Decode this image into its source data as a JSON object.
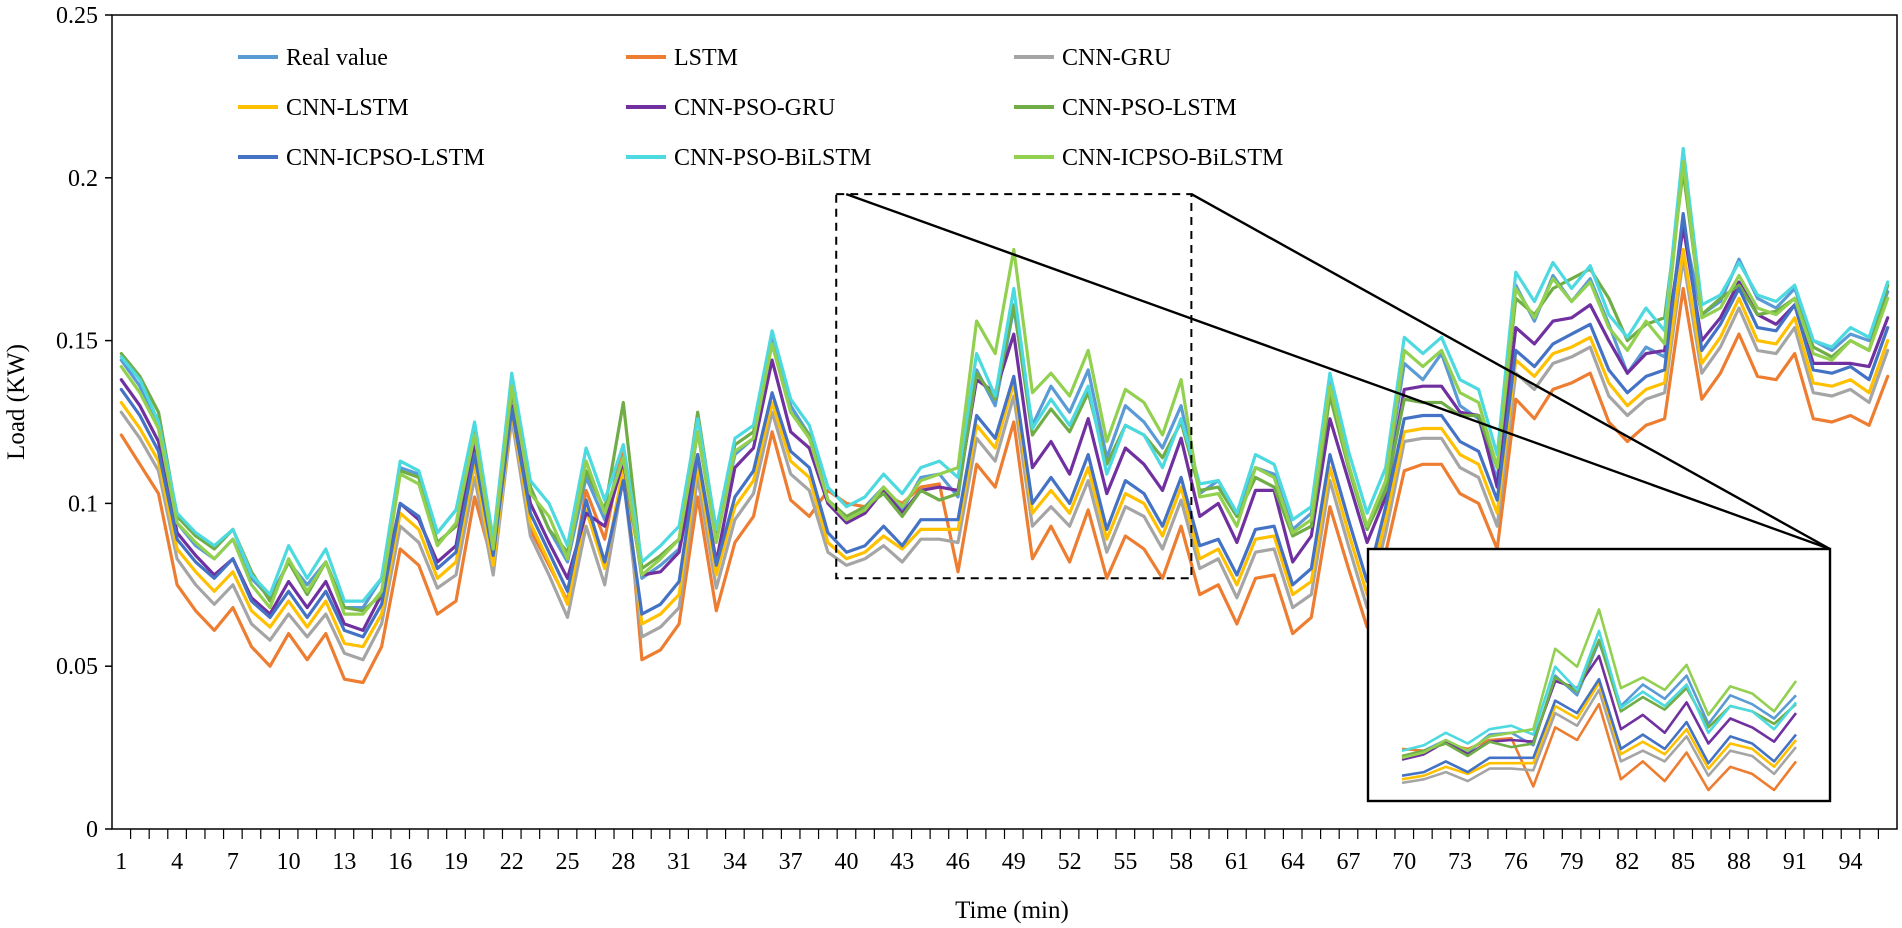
{
  "chart_data": {
    "type": "line",
    "title": "",
    "xlabel": "Time (min)",
    "ylabel": "Load (KW)",
    "xlim": [
      1,
      96
    ],
    "ylim": [
      0,
      0.25
    ],
    "xticks": [
      1,
      4,
      7,
      10,
      13,
      16,
      19,
      22,
      25,
      28,
      31,
      34,
      37,
      40,
      43,
      46,
      49,
      52,
      55,
      58,
      61,
      64,
      67,
      70,
      73,
      76,
      79,
      82,
      85,
      88,
      91,
      94
    ],
    "yticks": [
      0,
      0.05,
      0.1,
      0.15,
      0.2,
      0.25
    ],
    "ytick_labels": [
      "0",
      "0.05",
      "0.1",
      "0.15",
      "0.2",
      "0.25"
    ],
    "grid": false,
    "legend_position": "top",
    "zoom_window": {
      "x": [
        40,
        58
      ],
      "y": [
        0.077,
        0.195
      ]
    },
    "series": [
      {
        "name": "Real value",
        "color": "#5B9BD5",
        "values": [
          0.144,
          0.136,
          0.123,
          0.094,
          0.087,
          0.083,
          0.089,
          0.077,
          0.071,
          0.082,
          0.075,
          0.082,
          0.068,
          0.068,
          0.077,
          0.111,
          0.109,
          0.091,
          0.098,
          0.118,
          0.086,
          0.135,
          0.105,
          0.092,
          0.082,
          0.108,
          0.095,
          0.117,
          0.077,
          0.081,
          0.086,
          0.122,
          0.089,
          0.115,
          0.12,
          0.152,
          0.13,
          0.121,
          0.101,
          0.095,
          0.099,
          0.105,
          0.098,
          0.108,
          0.109,
          0.102,
          0.141,
          0.13,
          0.16,
          0.124,
          0.136,
          0.128,
          0.141,
          0.114,
          0.13,
          0.125,
          0.117,
          0.13,
          0.103,
          0.107,
          0.097,
          0.111,
          0.109,
          0.092,
          0.097,
          0.137,
          0.112,
          0.092,
          0.106,
          0.143,
          0.138,
          0.146,
          0.13,
          0.126,
          0.107,
          0.167,
          0.156,
          0.17,
          0.162,
          0.169,
          0.155,
          0.14,
          0.148,
          0.145,
          0.185,
          0.158,
          0.162,
          0.175,
          0.163,
          0.16,
          0.166,
          0.15,
          0.147,
          0.152,
          0.15,
          0.165
        ]
      },
      {
        "name": "LSTM",
        "color": "#ED7D31",
        "values": [
          0.121,
          0.112,
          0.103,
          0.075,
          0.067,
          0.061,
          0.068,
          0.056,
          0.05,
          0.06,
          0.052,
          0.06,
          0.046,
          0.045,
          0.056,
          0.086,
          0.081,
          0.066,
          0.07,
          0.102,
          0.081,
          0.127,
          0.092,
          0.081,
          0.07,
          0.104,
          0.089,
          0.118,
          0.052,
          0.055,
          0.063,
          0.102,
          0.067,
          0.088,
          0.096,
          0.122,
          0.101,
          0.096,
          0.104,
          0.1,
          0.099,
          0.103,
          0.1,
          0.105,
          0.106,
          0.079,
          0.112,
          0.105,
          0.125,
          0.083,
          0.093,
          0.082,
          0.098,
          0.077,
          0.09,
          0.086,
          0.077,
          0.093,
          0.072,
          0.075,
          0.063,
          0.077,
          0.078,
          0.06,
          0.065,
          0.099,
          0.08,
          0.062,
          0.085,
          0.11,
          0.112,
          0.112,
          0.103,
          0.1,
          0.086,
          0.132,
          0.126,
          0.135,
          0.137,
          0.14,
          0.125,
          0.119,
          0.124,
          0.126,
          0.166,
          0.132,
          0.14,
          0.152,
          0.139,
          0.138,
          0.146,
          0.126,
          0.125,
          0.127,
          0.124,
          0.139
        ]
      },
      {
        "name": "CNN-GRU",
        "color": "#A5A5A5",
        "values": [
          0.128,
          0.12,
          0.11,
          0.083,
          0.075,
          0.069,
          0.075,
          0.063,
          0.058,
          0.066,
          0.059,
          0.066,
          0.054,
          0.052,
          0.063,
          0.093,
          0.088,
          0.074,
          0.078,
          0.108,
          0.078,
          0.126,
          0.09,
          0.078,
          0.065,
          0.093,
          0.075,
          0.108,
          0.059,
          0.062,
          0.068,
          0.108,
          0.074,
          0.095,
          0.103,
          0.128,
          0.109,
          0.104,
          0.085,
          0.081,
          0.083,
          0.087,
          0.082,
          0.089,
          0.089,
          0.088,
          0.12,
          0.113,
          0.133,
          0.093,
          0.099,
          0.093,
          0.107,
          0.085,
          0.099,
          0.096,
          0.086,
          0.101,
          0.08,
          0.083,
          0.071,
          0.085,
          0.086,
          0.068,
          0.072,
          0.107,
          0.087,
          0.068,
          0.091,
          0.119,
          0.12,
          0.12,
          0.111,
          0.108,
          0.093,
          0.14,
          0.135,
          0.143,
          0.145,
          0.148,
          0.133,
          0.127,
          0.132,
          0.134,
          0.175,
          0.14,
          0.148,
          0.16,
          0.147,
          0.146,
          0.154,
          0.134,
          0.133,
          0.135,
          0.131,
          0.147
        ]
      },
      {
        "name": "CNN-LSTM",
        "color": "#FFC000",
        "values": [
          0.131,
          0.123,
          0.113,
          0.086,
          0.079,
          0.073,
          0.079,
          0.067,
          0.062,
          0.07,
          0.062,
          0.07,
          0.057,
          0.056,
          0.066,
          0.097,
          0.092,
          0.077,
          0.082,
          0.112,
          0.081,
          0.128,
          0.094,
          0.082,
          0.069,
          0.098,
          0.08,
          0.111,
          0.063,
          0.066,
          0.072,
          0.112,
          0.078,
          0.099,
          0.107,
          0.131,
          0.113,
          0.108,
          0.088,
          0.083,
          0.085,
          0.09,
          0.086,
          0.092,
          0.092,
          0.092,
          0.124,
          0.117,
          0.137,
          0.097,
          0.104,
          0.097,
          0.111,
          0.089,
          0.103,
          0.1,
          0.09,
          0.105,
          0.083,
          0.086,
          0.075,
          0.089,
          0.09,
          0.072,
          0.076,
          0.111,
          0.091,
          0.072,
          0.095,
          0.122,
          0.123,
          0.123,
          0.115,
          0.112,
          0.097,
          0.144,
          0.139,
          0.146,
          0.148,
          0.151,
          0.137,
          0.13,
          0.135,
          0.137,
          0.178,
          0.143,
          0.151,
          0.163,
          0.15,
          0.149,
          0.157,
          0.137,
          0.136,
          0.138,
          0.134,
          0.15
        ]
      },
      {
        "name": "CNN-PSO-GRU",
        "color": "#7030A0",
        "values": [
          0.138,
          0.13,
          0.119,
          0.091,
          0.084,
          0.078,
          0.083,
          0.071,
          0.066,
          0.076,
          0.068,
          0.076,
          0.063,
          0.061,
          0.072,
          0.1,
          0.095,
          0.082,
          0.087,
          0.119,
          0.085,
          0.13,
          0.1,
          0.088,
          0.077,
          0.097,
          0.093,
          0.113,
          0.078,
          0.079,
          0.085,
          0.115,
          0.082,
          0.111,
          0.117,
          0.144,
          0.122,
          0.117,
          0.1,
          0.094,
          0.097,
          0.104,
          0.097,
          0.104,
          0.105,
          0.104,
          0.138,
          0.134,
          0.152,
          0.111,
          0.119,
          0.109,
          0.126,
          0.103,
          0.117,
          0.112,
          0.104,
          0.12,
          0.096,
          0.1,
          0.088,
          0.104,
          0.104,
          0.082,
          0.09,
          0.126,
          0.107,
          0.088,
          0.102,
          0.135,
          0.136,
          0.136,
          0.128,
          0.127,
          0.105,
          0.154,
          0.149,
          0.156,
          0.157,
          0.161,
          0.15,
          0.14,
          0.146,
          0.147,
          0.185,
          0.15,
          0.157,
          0.168,
          0.158,
          0.155,
          0.161,
          0.143,
          0.143,
          0.143,
          0.142,
          0.157
        ]
      },
      {
        "name": "CNN-PSO-LSTM",
        "color": "#70AD47",
        "values": [
          0.146,
          0.139,
          0.128,
          0.096,
          0.09,
          0.086,
          0.092,
          0.079,
          0.07,
          0.082,
          0.072,
          0.082,
          0.068,
          0.067,
          0.072,
          0.11,
          0.108,
          0.088,
          0.093,
          0.122,
          0.089,
          0.134,
          0.105,
          0.092,
          0.085,
          0.11,
          0.098,
          0.131,
          0.08,
          0.084,
          0.089,
          0.128,
          0.091,
          0.118,
          0.122,
          0.149,
          0.128,
          0.121,
          0.101,
          0.096,
          0.099,
          0.103,
          0.096,
          0.104,
          0.101,
          0.103,
          0.14,
          0.132,
          0.161,
          0.121,
          0.129,
          0.122,
          0.134,
          0.112,
          0.124,
          0.121,
          0.114,
          0.125,
          0.104,
          0.105,
          0.096,
          0.108,
          0.105,
          0.09,
          0.093,
          0.133,
          0.111,
          0.092,
          0.104,
          0.132,
          0.131,
          0.131,
          0.127,
          0.127,
          0.111,
          0.163,
          0.158,
          0.166,
          0.169,
          0.172,
          0.163,
          0.15,
          0.155,
          0.157,
          0.202,
          0.158,
          0.163,
          0.167,
          0.158,
          0.159,
          0.163,
          0.148,
          0.145,
          0.15,
          0.147,
          0.167
        ]
      },
      {
        "name": "CNN-ICPSO-LSTM",
        "color": "#4472C4",
        "values": [
          0.135,
          0.127,
          0.116,
          0.089,
          0.082,
          0.077,
          0.083,
          0.07,
          0.065,
          0.073,
          0.065,
          0.073,
          0.061,
          0.059,
          0.069,
          0.1,
          0.096,
          0.08,
          0.085,
          0.115,
          0.084,
          0.129,
          0.097,
          0.085,
          0.073,
          0.101,
          0.082,
          0.107,
          0.066,
          0.069,
          0.076,
          0.115,
          0.081,
          0.102,
          0.11,
          0.134,
          0.116,
          0.111,
          0.091,
          0.085,
          0.087,
          0.093,
          0.087,
          0.095,
          0.095,
          0.095,
          0.127,
          0.12,
          0.139,
          0.1,
          0.108,
          0.1,
          0.115,
          0.092,
          0.107,
          0.103,
          0.093,
          0.108,
          0.087,
          0.089,
          0.078,
          0.092,
          0.093,
          0.075,
          0.08,
          0.115,
          0.095,
          0.076,
          0.099,
          0.126,
          0.127,
          0.127,
          0.119,
          0.116,
          0.101,
          0.147,
          0.142,
          0.149,
          0.152,
          0.155,
          0.141,
          0.134,
          0.139,
          0.141,
          0.189,
          0.147,
          0.155,
          0.166,
          0.154,
          0.153,
          0.161,
          0.141,
          0.14,
          0.142,
          0.138,
          0.154
        ]
      },
      {
        "name": "CNN-PSO-BiLSTM",
        "color": "#4DD9E0",
        "values": [
          0.145,
          0.138,
          0.125,
          0.097,
          0.091,
          0.087,
          0.092,
          0.078,
          0.072,
          0.087,
          0.077,
          0.086,
          0.07,
          0.07,
          0.077,
          0.113,
          0.11,
          0.091,
          0.098,
          0.125,
          0.089,
          0.14,
          0.107,
          0.1,
          0.087,
          0.117,
          0.101,
          0.118,
          0.082,
          0.087,
          0.093,
          0.126,
          0.092,
          0.12,
          0.124,
          0.153,
          0.132,
          0.124,
          0.105,
          0.099,
          0.102,
          0.109,
          0.103,
          0.111,
          0.113,
          0.108,
          0.146,
          0.133,
          0.166,
          0.123,
          0.132,
          0.124,
          0.136,
          0.109,
          0.124,
          0.121,
          0.111,
          0.126,
          0.106,
          0.107,
          0.097,
          0.115,
          0.112,
          0.095,
          0.099,
          0.14,
          0.116,
          0.097,
          0.111,
          0.151,
          0.146,
          0.151,
          0.138,
          0.135,
          0.115,
          0.171,
          0.162,
          0.174,
          0.166,
          0.173,
          0.158,
          0.151,
          0.16,
          0.153,
          0.209,
          0.161,
          0.164,
          0.174,
          0.164,
          0.162,
          0.167,
          0.15,
          0.148,
          0.154,
          0.151,
          0.168
        ]
      },
      {
        "name": "CNN-ICPSO-BiLSTM",
        "color": "#92D050",
        "values": [
          0.142,
          0.134,
          0.123,
          0.094,
          0.088,
          0.083,
          0.089,
          0.075,
          0.068,
          0.083,
          0.073,
          0.082,
          0.066,
          0.066,
          0.073,
          0.109,
          0.106,
          0.087,
          0.094,
          0.121,
          0.086,
          0.136,
          0.103,
          0.096,
          0.083,
          0.113,
          0.097,
          0.114,
          0.078,
          0.083,
          0.089,
          0.122,
          0.088,
          0.116,
          0.12,
          0.149,
          0.128,
          0.12,
          0.101,
          0.095,
          0.098,
          0.105,
          0.099,
          0.107,
          0.109,
          0.111,
          0.156,
          0.146,
          0.178,
          0.134,
          0.14,
          0.133,
          0.147,
          0.119,
          0.135,
          0.131,
          0.121,
          0.138,
          0.102,
          0.103,
          0.093,
          0.111,
          0.108,
          0.091,
          0.095,
          0.136,
          0.112,
          0.093,
          0.107,
          0.147,
          0.142,
          0.147,
          0.134,
          0.131,
          0.111,
          0.166,
          0.157,
          0.169,
          0.162,
          0.168,
          0.154,
          0.147,
          0.156,
          0.149,
          0.205,
          0.157,
          0.16,
          0.17,
          0.16,
          0.158,
          0.163,
          0.146,
          0.144,
          0.15,
          0.147,
          0.163
        ]
      }
    ]
  }
}
